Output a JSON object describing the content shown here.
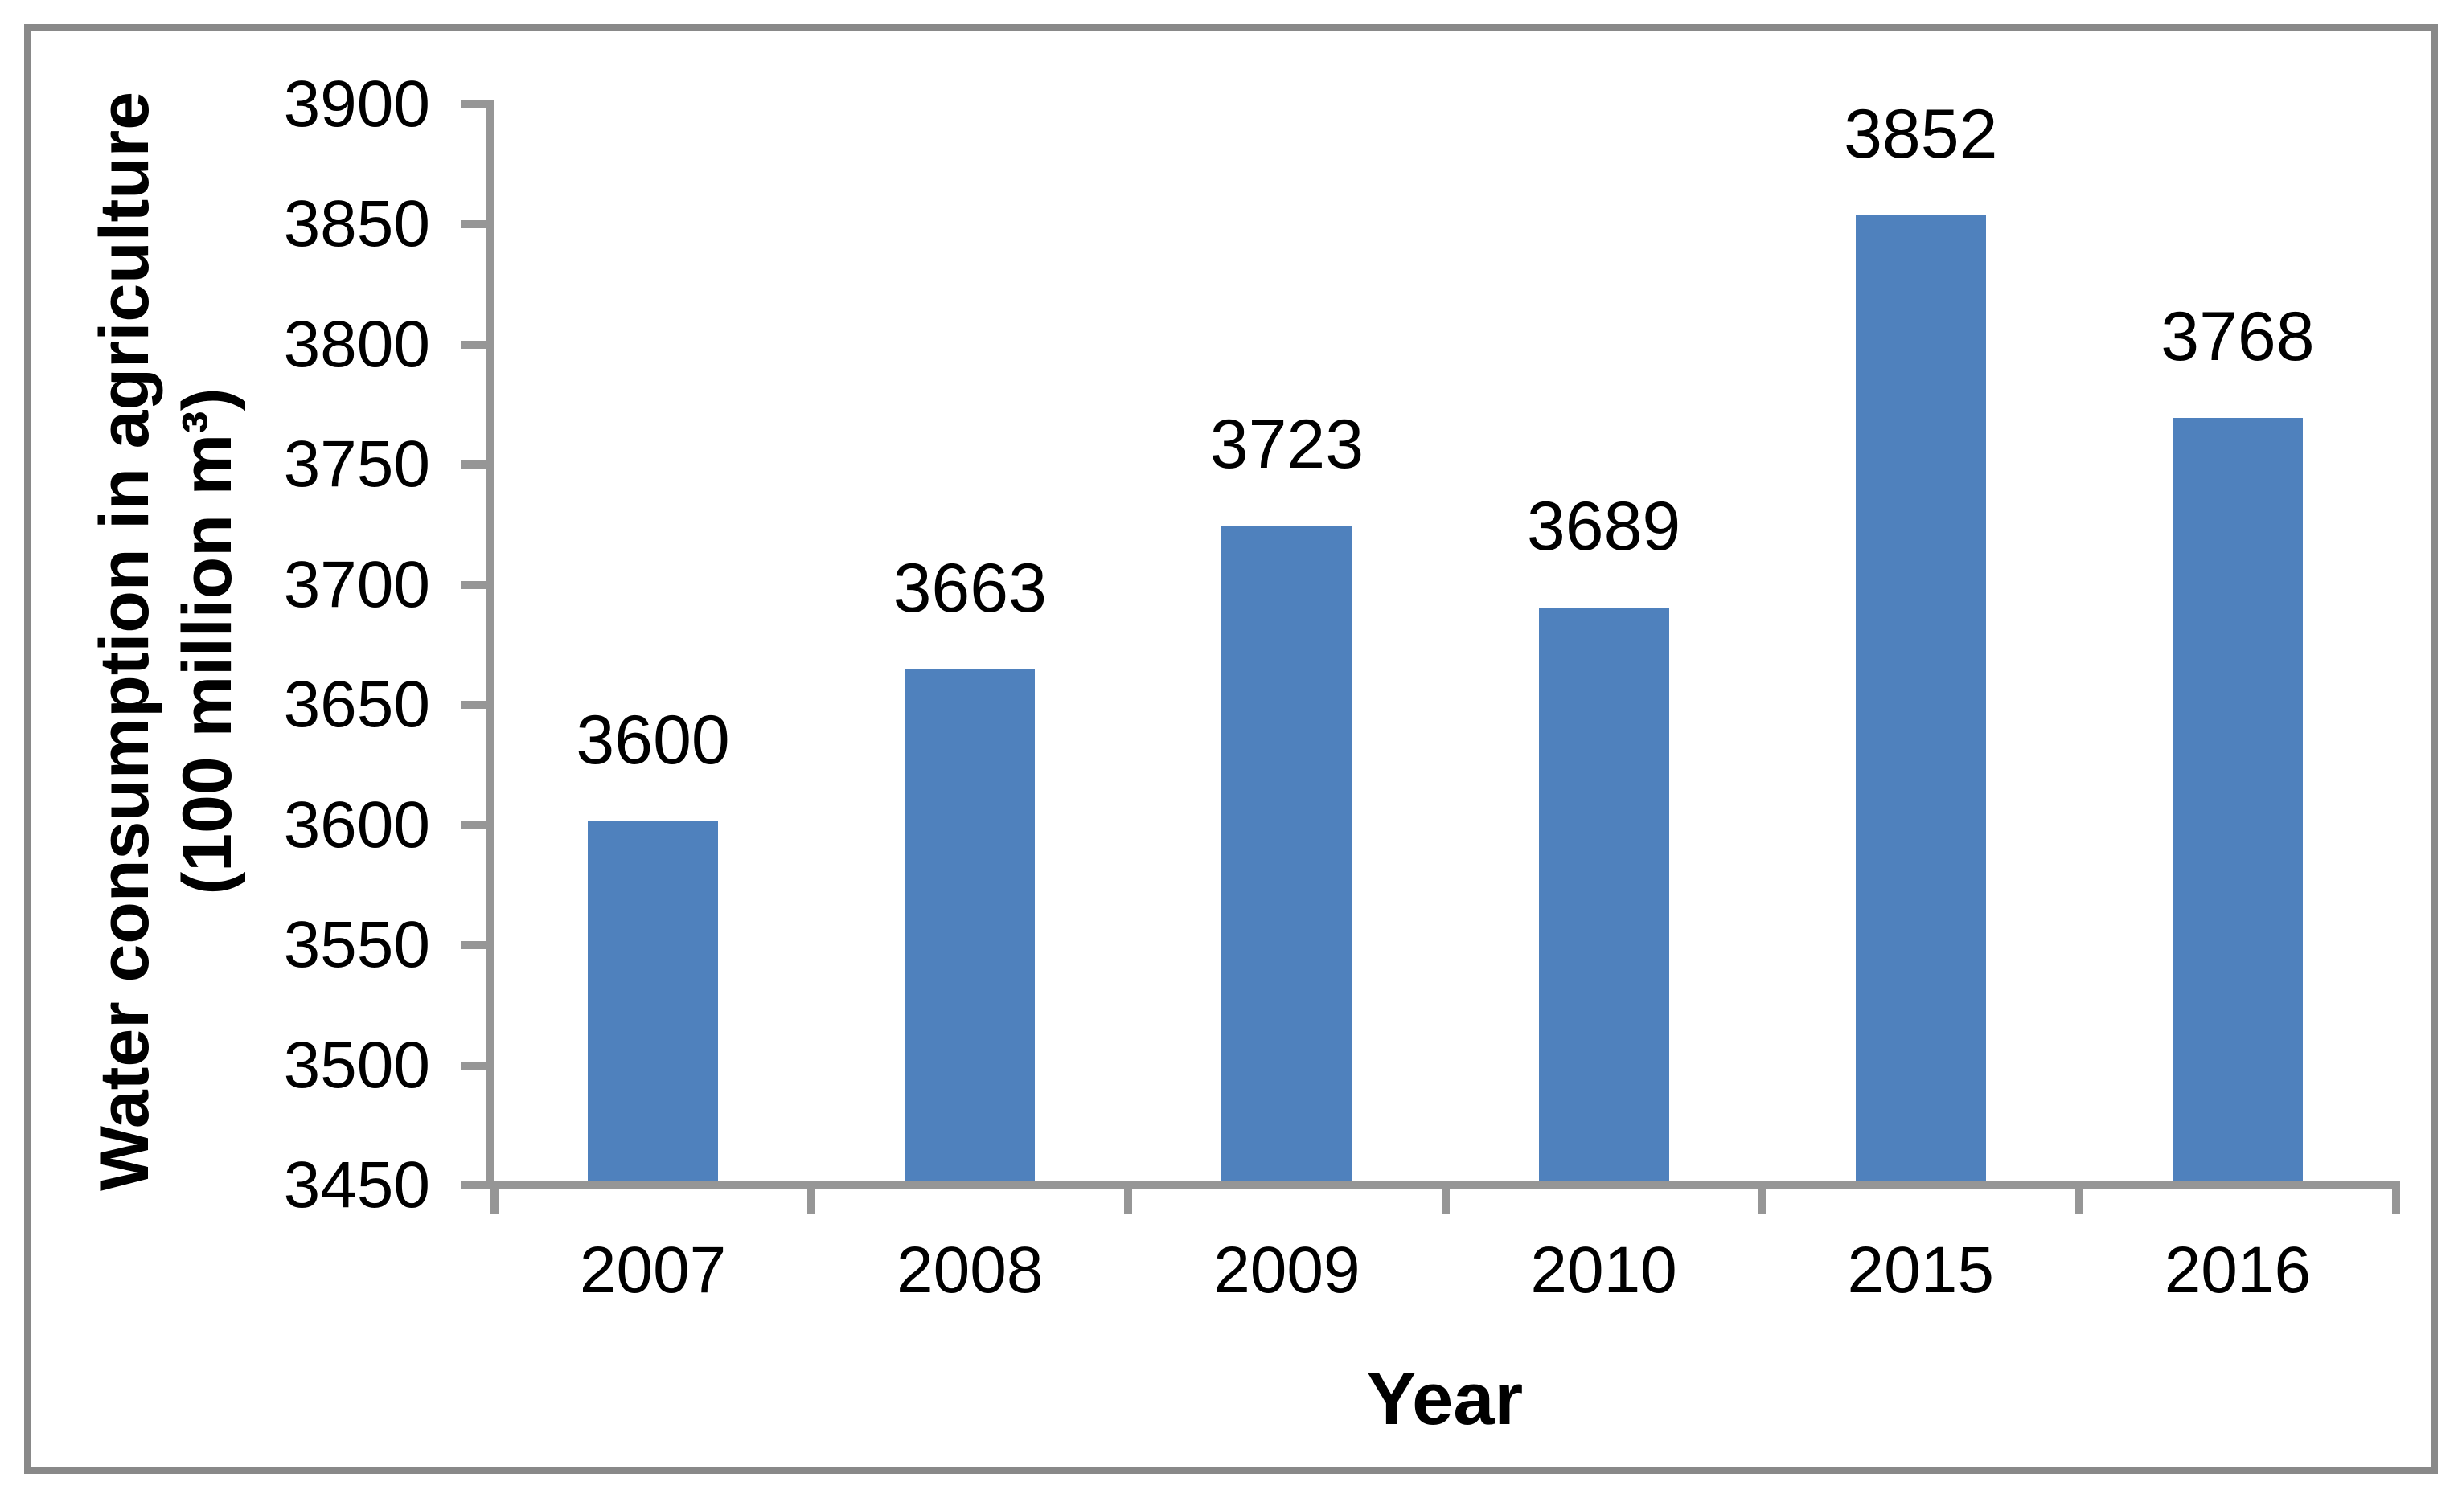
{
  "figure": {
    "background_color": "#ffffff",
    "border_color": "#898989"
  },
  "chart_data": {
    "type": "bar",
    "title": "",
    "categories": [
      "2007",
      "2008",
      "2009",
      "2010",
      "2015",
      "2016"
    ],
    "values": [
      3600,
      3663,
      3723,
      3689,
      3852,
      3768
    ],
    "data_labels": [
      "3600",
      "3663",
      "3723",
      "3689",
      "3852",
      "3768"
    ],
    "xlabel": "Year",
    "ylabel_lines": [
      "Water consumption in agriculture",
      "(100 million m³)"
    ],
    "ylim": [
      3450,
      3900
    ],
    "ytick_step": 50,
    "yticks": [
      3450,
      3500,
      3550,
      3600,
      3650,
      3700,
      3750,
      3800,
      3850,
      3900
    ],
    "grid": false,
    "legend_position": "none",
    "bar_color": "#4F81BD",
    "axis_color": "#969696",
    "text_color": "#000000"
  }
}
